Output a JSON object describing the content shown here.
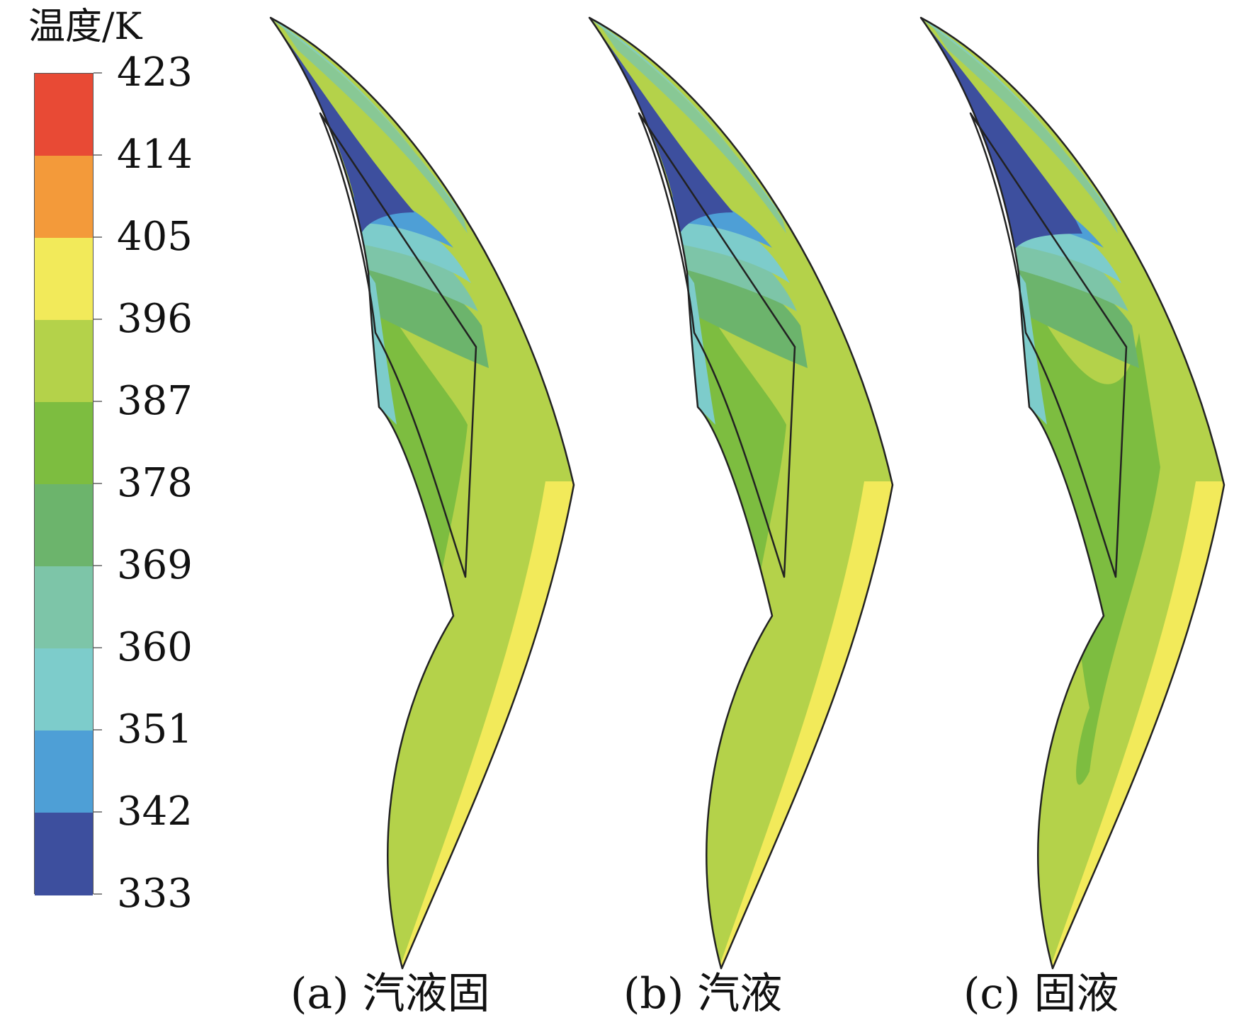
{
  "legend": {
    "title": "温度/K",
    "ticks": [
      "423",
      "414",
      "405",
      "396",
      "387",
      "378",
      "369",
      "360",
      "351",
      "342",
      "333"
    ],
    "bands_top_to_bottom": [
      "#e84a35",
      "#f39a3a",
      "#f2ea5a",
      "#b4d24a",
      "#7dbd40",
      "#6cb46c",
      "#7dc5a8",
      "#7dcccb",
      "#4e9fd6",
      "#3d4f9e"
    ]
  },
  "panels": [
    {
      "caption": "(a) 汽液固"
    },
    {
      "caption": "(b) 汽液"
    },
    {
      "caption": "(c) 固液"
    }
  ],
  "colors": {
    "hot": "#e84a35",
    "warm_orange": "#f39a3a",
    "yellow": "#f2ea5a",
    "yellow_green": "#b4d24a",
    "green": "#7dbd40",
    "mid_green": "#6cb46c",
    "teal": "#7dc5a8",
    "cyan": "#7dcccb",
    "blue": "#4e9fd6",
    "dark_blue": "#3d4f9e",
    "outline": "#222222"
  }
}
